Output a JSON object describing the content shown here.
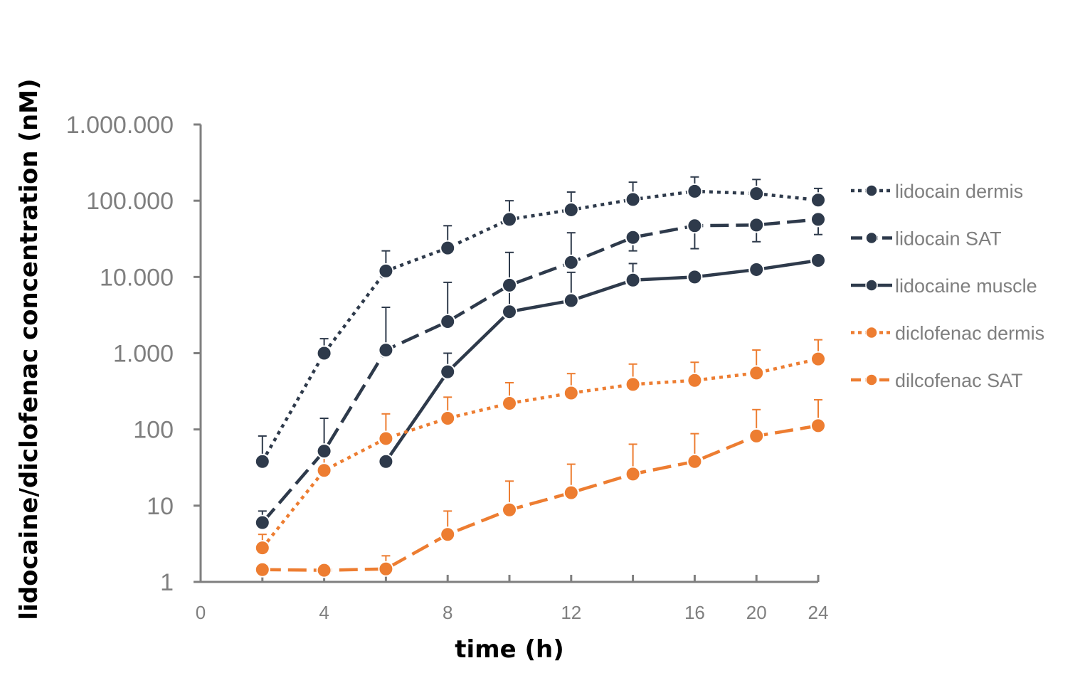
{
  "chart_data": {
    "type": "line",
    "title": "",
    "xlabel": "time (h)",
    "ylabel": "lidocaine/diclofenac concentration (nM)",
    "y_scale": "log",
    "xlim": [
      0,
      24
    ],
    "ylim": [
      1,
      1000000
    ],
    "x_ticks": [
      "0",
      "4",
      "8",
      "12",
      "16",
      "20",
      "24"
    ],
    "y_ticks": [
      "1",
      "10",
      "100",
      "1.000",
      "10.000",
      "100.000",
      "1.000.000"
    ],
    "x_categories": [
      0,
      2,
      4,
      6,
      8,
      10,
      12,
      14,
      16,
      20,
      24
    ],
    "grid": false,
    "legend_position": "right",
    "series": [
      {
        "name": "lidocain dermis",
        "color": "#2e3a4b",
        "line_style": "dotted",
        "x": [
          2,
          4,
          6,
          8,
          10,
          12,
          14,
          16,
          20,
          24
        ],
        "values": [
          38,
          1000,
          12000,
          24000,
          57000,
          76000,
          104000,
          133000,
          124000,
          102000
        ],
        "error_upper": [
          82,
          1550,
          22000,
          47000,
          100000,
          130000,
          175000,
          205000,
          190000,
          145000
        ]
      },
      {
        "name": "lidocain SAT",
        "color": "#2e3a4b",
        "line_style": "dashed",
        "x": [
          2,
          4,
          6,
          8,
          10,
          12,
          14,
          16,
          20,
          24
        ],
        "values": [
          6,
          52,
          1100,
          2600,
          7800,
          15500,
          33000,
          47000,
          48000,
          57000
        ],
        "error_upper": [
          8.5,
          140,
          4000,
          8500,
          21000,
          38000,
          22000,
          23500,
          29000,
          36000
        ]
      },
      {
        "name": "lidocaine muscle",
        "color": "#2e3a4b",
        "line_style": "solid",
        "x": [
          6,
          8,
          10,
          12,
          14,
          16,
          20,
          24
        ],
        "values": [
          38,
          570,
          3500,
          4900,
          9100,
          10000,
          12500,
          16500
        ],
        "error_upper": [
          null,
          1000,
          8500,
          11500,
          15000,
          null,
          null,
          null
        ]
      },
      {
        "name": "diclofenac dermis",
        "color": "#ed7d31",
        "line_style": "dotted",
        "x": [
          2,
          4,
          6,
          8,
          10,
          12,
          14,
          16,
          20,
          24
        ],
        "values": [
          2.8,
          29,
          76,
          140,
          220,
          300,
          390,
          440,
          550,
          840
        ],
        "error_upper": [
          4.2,
          50,
          160,
          265,
          410,
          540,
          720,
          760,
          1100,
          1500
        ]
      },
      {
        "name": "dilcofenac SAT",
        "color": "#ed7d31",
        "line_style": "dashed",
        "x": [
          2,
          4,
          6,
          8,
          10,
          12,
          14,
          16,
          20,
          24
        ],
        "values": [
          1.45,
          1.42,
          1.48,
          4.2,
          8.8,
          14.8,
          26,
          38,
          82,
          112
        ],
        "error_upper": [
          null,
          null,
          2.2,
          8.5,
          21,
          35,
          64,
          88,
          182,
          245
        ]
      }
    ]
  }
}
